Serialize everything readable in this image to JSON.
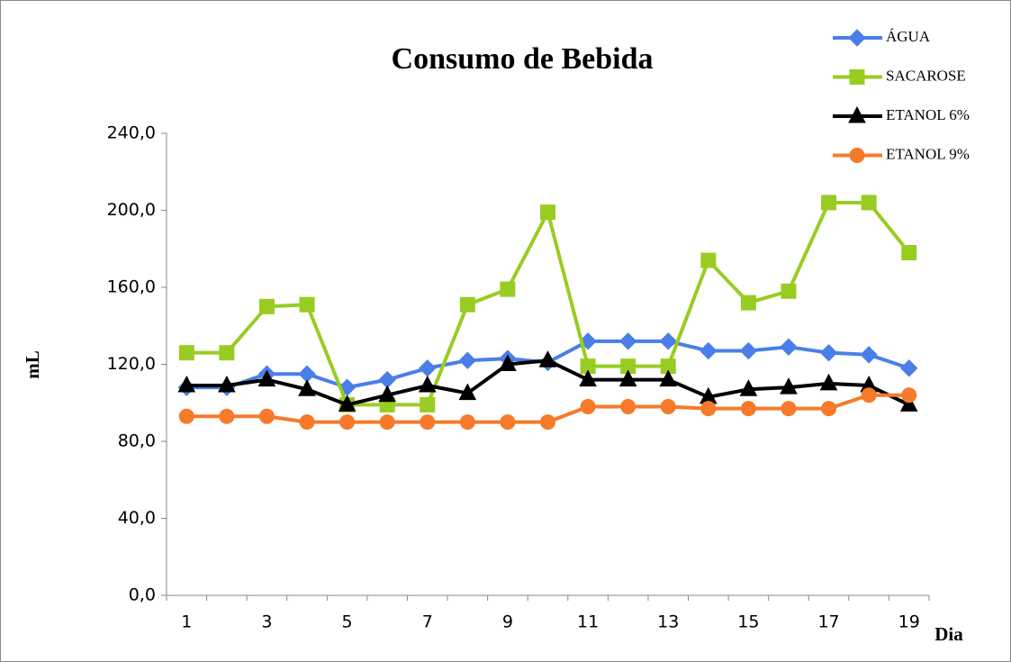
{
  "chart_data": {
    "type": "line",
    "title": "Consumo de Bebida",
    "y_label": "mL",
    "x_label": "Dia",
    "categories": [
      1,
      null,
      3,
      null,
      5,
      null,
      7,
      null,
      9,
      null,
      11,
      null,
      13,
      null,
      15,
      null,
      17,
      null,
      19
    ],
    "series": [
      {
        "name": "ÁGUA",
        "color": "#4a7ee8",
        "marker": "diamond",
        "values": [
          108,
          108,
          115,
          115,
          108,
          112,
          118,
          122,
          123,
          121,
          132,
          132,
          132,
          127,
          127,
          129,
          126,
          125,
          118
        ]
      },
      {
        "name": "SACAROSE",
        "color": "#99cc22",
        "marker": "square",
        "values": [
          126,
          126,
          150,
          151,
          99,
          99,
          99,
          151,
          159,
          199,
          119,
          119,
          119,
          174,
          152,
          158,
          204,
          204,
          178
        ]
      },
      {
        "name": "ETANOL 6%",
        "color": "#000000",
        "marker": "triangle",
        "values": [
          109,
          109,
          112,
          107,
          99,
          104,
          109,
          105,
          120,
          122,
          112,
          112,
          112,
          103,
          107,
          108,
          110,
          109,
          99
        ]
      },
      {
        "name": "ETANOL 9%",
        "color": "#f77a2a",
        "marker": "circle",
        "values": [
          93,
          93,
          93,
          90,
          90,
          90,
          90,
          90,
          90,
          90,
          98,
          98,
          98,
          97,
          97,
          97,
          97,
          104,
          104
        ]
      }
    ],
    "ylim": [
      0,
      240
    ],
    "yticks": [
      {
        "value": 0,
        "label": "0,0"
      },
      {
        "value": 40,
        "label": "40,0"
      },
      {
        "value": 80,
        "label": "80,0"
      },
      {
        "value": 120,
        "label": "120,0"
      },
      {
        "value": 160,
        "label": "160,0"
      },
      {
        "value": 200,
        "label": "200,0"
      },
      {
        "value": 240,
        "label": "240,0"
      }
    ],
    "grid": false,
    "legend": "top-right"
  }
}
